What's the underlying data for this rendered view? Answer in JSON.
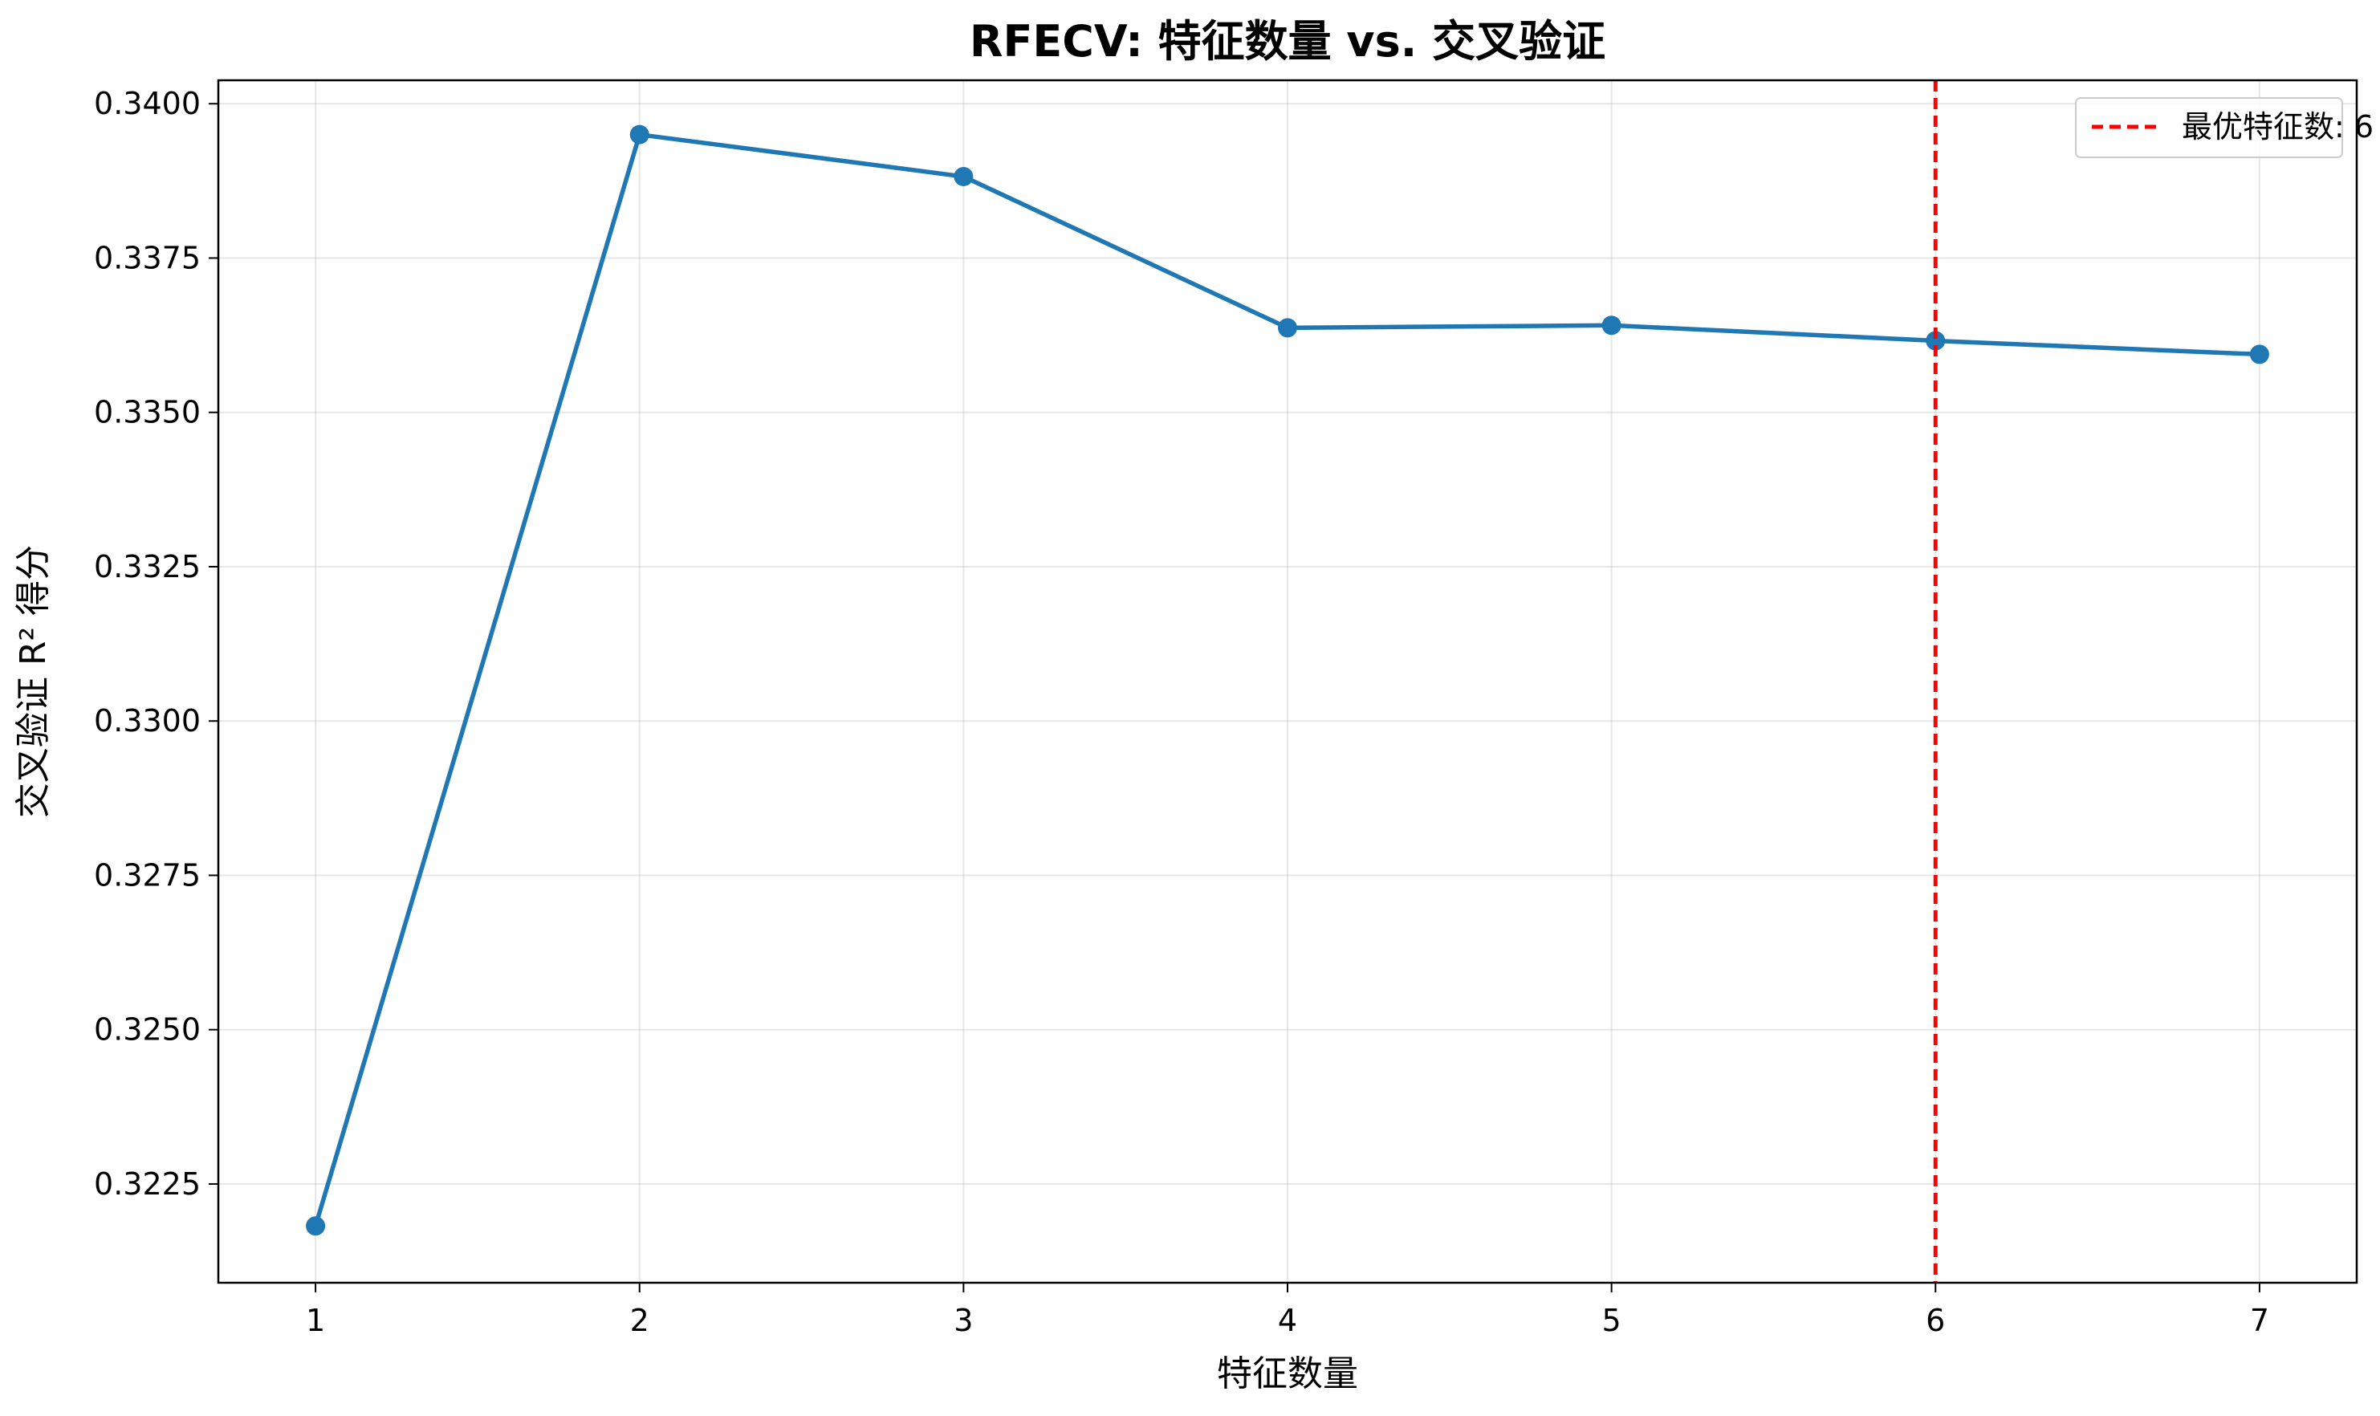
{
  "chart_data": {
    "type": "line",
    "title": "RFECV: 特征数量 vs. 交叉验证",
    "xlabel": "特征数量",
    "ylabel": "交叉验证 R² 得分",
    "x": [
      1,
      2,
      3,
      4,
      5,
      6,
      7
    ],
    "series": [
      {
        "values": [
          0.32182,
          0.3395,
          0.33882,
          0.33637,
          0.33641,
          0.33616,
          0.33594
        ],
        "color": "#1f77b4",
        "marker": "circle"
      }
    ],
    "xlim": [
      0.7,
      7.3
    ],
    "ylim": [
      0.3209,
      0.34038
    ],
    "x_ticks": [
      "1",
      "2",
      "3",
      "4",
      "5",
      "6",
      "7"
    ],
    "y_ticks": [
      "0.3225",
      "0.3250",
      "0.3275",
      "0.3300",
      "0.3325",
      "0.3350",
      "0.3375",
      "0.3400"
    ],
    "y_tick_values": [
      0.3225,
      0.325,
      0.3275,
      0.33,
      0.3325,
      0.335,
      0.3375,
      0.34
    ],
    "annotations": [
      {
        "type": "vline",
        "x": 6,
        "color": "#ff0000",
        "style": "dashed"
      }
    ],
    "legend": {
      "placement": "top-right",
      "entries": [
        "最优特征数: 6"
      ]
    },
    "grid": true
  }
}
